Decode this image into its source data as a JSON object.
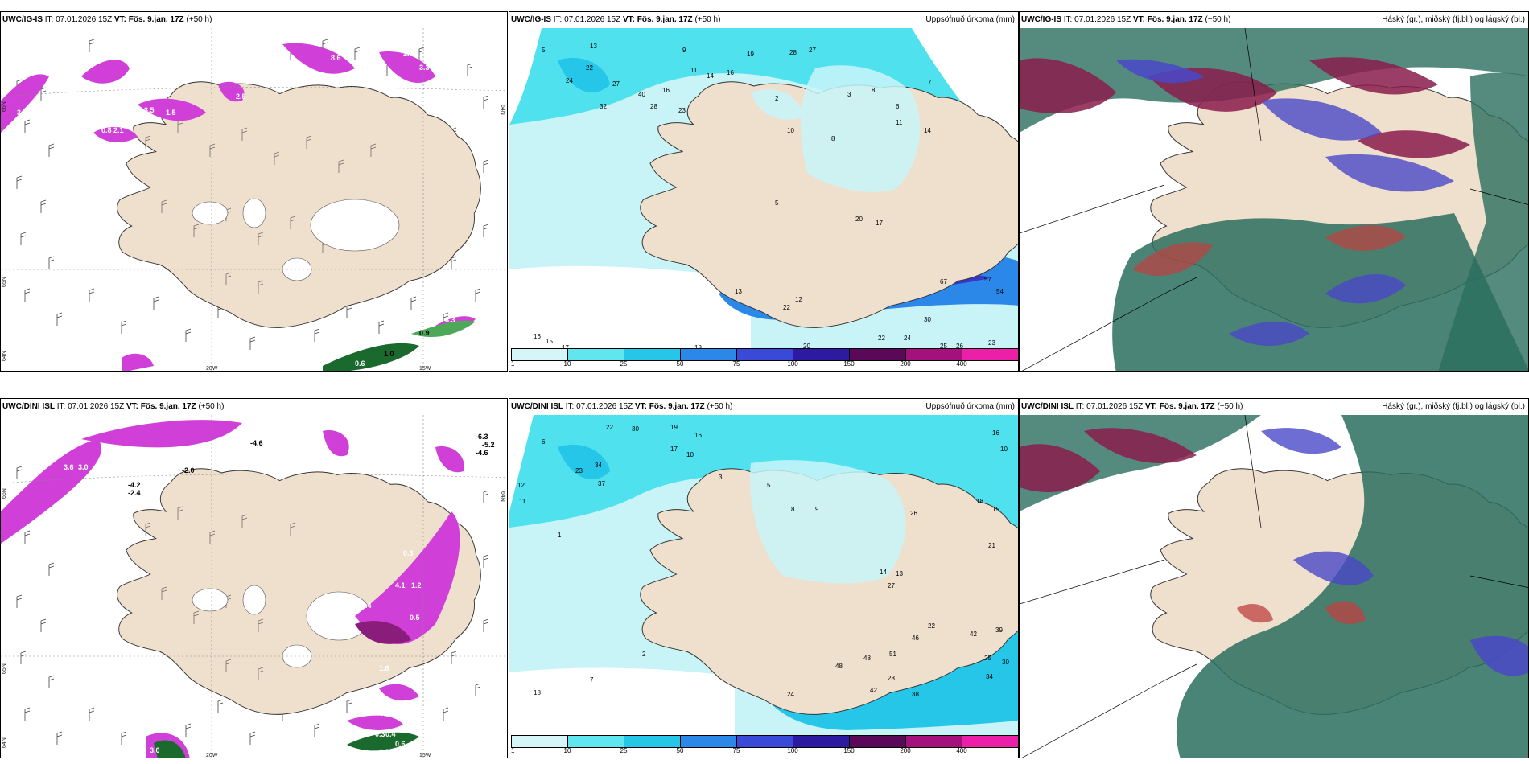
{
  "colors": {
    "land": "#efdfcd",
    "sea": "#ffffff",
    "precip_light": "#c8f4f8",
    "precip_cyan": "#4fe2ee",
    "precip_blue": "#2c88e8",
    "precip_deep": "#3a37c8",
    "cloud_high": "#8a1c4c",
    "cloud_mid": "#4a48c8",
    "cloud_low": "#2a6e5e",
    "snow_magenta": "#d040d8",
    "snow_green": "#1a6a2e"
  },
  "panels": [
    {
      "model": "UWC/IG-IS",
      "it": "IT: 07.01.2026 15Z",
      "vt": "VT: Fös. 9.jan. 17Z",
      "lead": "(+50 h)",
      "subtitle": "",
      "labels": {
        "lat66": "66N",
        "lat65": "65N",
        "lat64": "64N",
        "lon20": "20W",
        "lon15": "15W",
        "lat64b": "64N"
      },
      "values": [
        "3.2",
        "0.8",
        "2.1",
        "3.5",
        "1.5",
        "2.5",
        "8.6",
        "4.3",
        "2.5",
        "3.3",
        "0.9",
        "1.0",
        "0.6",
        "6.3"
      ]
    },
    {
      "model": "UWC/IG-IS",
      "it": "IT: 07.01.2026 15Z",
      "vt": "VT: Fös. 9.jan. 17Z",
      "lead": "(+50 h)",
      "subtitle": "Uppsöfnuð úrkoma (mm)",
      "labels": {
        "lat65": "65N",
        "lat64": "64N"
      },
      "values": [
        "13",
        "5",
        "24",
        "22",
        "27",
        "32",
        "40",
        "28",
        "9",
        "11",
        "14",
        "16",
        "19",
        "28",
        "27",
        "16",
        "13",
        "12",
        "2",
        "23",
        "5",
        "8",
        "6",
        "3",
        "8",
        "7",
        "10",
        "14",
        "11",
        "17",
        "20",
        "57",
        "67",
        "54",
        "30",
        "22",
        "24",
        "25",
        "26",
        "23",
        "22",
        "20",
        "18",
        "17",
        "16",
        "15"
      ],
      "colorbar": {
        "labels": [
          "1",
          "10",
          "25",
          "50",
          "75",
          "100",
          "150",
          "200",
          "400"
        ],
        "colors": [
          "#d4f6f8",
          "#5fe6ef",
          "#25c6e8",
          "#2c88e8",
          "#3a4ad8",
          "#2c1aa0",
          "#5a0858",
          "#a4107c",
          "#ec20a8",
          "#f4b4ec"
        ]
      }
    },
    {
      "model": "UWC/IG-IS",
      "it": "IT: 07.01.2026 15Z",
      "vt": "VT: Fös. 9.jan. 17Z",
      "lead": "(+50 h)",
      "subtitle": "Háský (gr.), miðský (fj.bl.) og lágský (bl.)"
    },
    {
      "model": "UWC/DINI ISL",
      "it": "IT: 07.01.2026 15Z",
      "vt": "VT: Fös. 9.jan. 17Z",
      "lead": "(+50 h)",
      "subtitle": "",
      "labels": {
        "lat66": "66N",
        "lat65": "65N",
        "lat64": "64N",
        "lon20": "20W",
        "lon15": "15W",
        "lat64b": "64N"
      },
      "values": [
        "3.6",
        "3.0",
        "-4.2",
        "-2.4",
        "-2.0",
        "-4.6",
        "-6.3",
        "-5.2",
        "-4.6",
        "0.3",
        "4.1",
        "1.2",
        "0.4",
        "0.5",
        "1.6",
        "3.0",
        "0.3",
        "0.4",
        "0.6",
        "3.5",
        "1.2"
      ]
    },
    {
      "model": "UWC/DINI ISL",
      "it": "IT: 07.01.2026 15Z",
      "vt": "VT: Fös. 9.jan. 17Z",
      "lead": "(+50 h)",
      "subtitle": "Uppsöfnuð úrkoma (mm)",
      "labels": {
        "lat65": "65N",
        "lat64": "64N"
      },
      "values": [
        "22",
        "30",
        "19",
        "16",
        "17",
        "10",
        "6",
        "12",
        "11",
        "23",
        "34",
        "37",
        "14",
        "13",
        "16",
        "15",
        "10",
        "18",
        "21",
        "27",
        "26",
        "22",
        "46",
        "42",
        "39",
        "48",
        "51",
        "25",
        "30",
        "34",
        "28",
        "48",
        "38",
        "24",
        "42",
        "18",
        "7",
        "2",
        "1",
        "3",
        "5",
        "8",
        "9"
      ],
      "colorbar": {
        "labels": [
          "1",
          "10",
          "25",
          "50",
          "75",
          "100",
          "150",
          "200",
          "400"
        ],
        "colors": [
          "#d4f6f8",
          "#5fe6ef",
          "#25c6e8",
          "#2c88e8",
          "#3a4ad8",
          "#2c1aa0",
          "#5a0858",
          "#a4107c",
          "#ec20a8",
          "#f4b4ec"
        ]
      }
    },
    {
      "model": "UWC/DINI ISL",
      "it": "IT: 07.01.2026 15Z",
      "vt": "VT: Fös. 9.jan. 17Z",
      "lead": "(+50 h)",
      "subtitle": "Háský (gr.), miðský (fj.bl.) og lágský (bl.)"
    }
  ]
}
